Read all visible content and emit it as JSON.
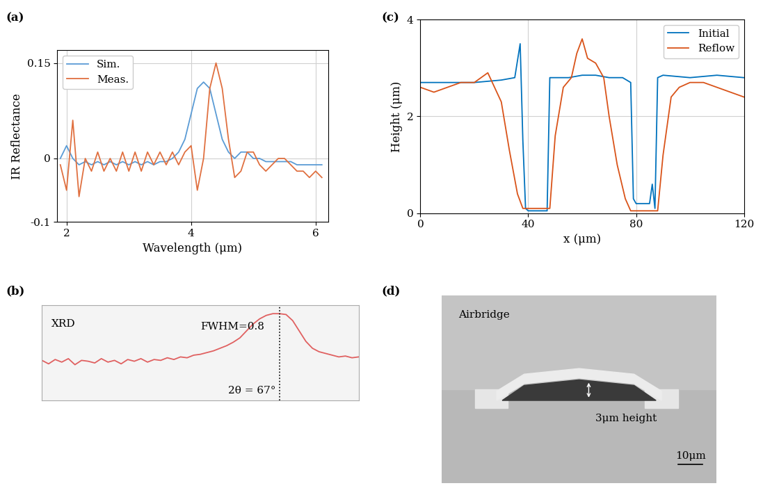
{
  "chart_data": [
    {
      "type": "line",
      "title": "(a)",
      "x_label": "Wavelength (μm)",
      "y_label": "IR Reflectance",
      "xlim": [
        1.85,
        6.2
      ],
      "xticks": [
        2,
        4,
        6
      ],
      "ylim": [
        -0.1,
        0.17
      ],
      "yticks": [
        -0.1,
        0,
        0.15
      ],
      "grid": true,
      "legend": "upper left",
      "series": [
        {
          "name": "Sim.",
          "color": "#5a9bd5",
          "x": [
            1.9,
            2.0,
            2.1,
            2.2,
            2.3,
            2.4,
            2.5,
            2.6,
            2.7,
            2.8,
            2.9,
            3.0,
            3.1,
            3.2,
            3.3,
            3.4,
            3.5,
            3.6,
            3.7,
            3.8,
            3.9,
            4.0,
            4.1,
            4.2,
            4.3,
            4.4,
            4.5,
            4.6,
            4.7,
            4.8,
            4.9,
            5.0,
            5.1,
            5.2,
            5.3,
            5.4,
            5.5,
            5.6,
            5.7,
            5.8,
            5.9,
            6.0,
            6.1
          ],
          "values": [
            0.0,
            0.02,
            0.0,
            -0.01,
            -0.005,
            -0.01,
            -0.005,
            -0.01,
            -0.005,
            -0.01,
            -0.005,
            -0.01,
            -0.005,
            -0.01,
            -0.005,
            -0.01,
            -0.005,
            -0.005,
            0.0,
            0.01,
            0.03,
            0.07,
            0.11,
            0.12,
            0.11,
            0.07,
            0.03,
            0.01,
            0.0,
            0.01,
            0.01,
            0.0,
            0.0,
            -0.005,
            -0.005,
            -0.005,
            -0.005,
            -0.005,
            -0.01,
            -0.01,
            -0.01,
            -0.01,
            -0.01
          ]
        },
        {
          "name": "Meas.",
          "color": "#e07040",
          "x": [
            1.9,
            2.0,
            2.1,
            2.2,
            2.3,
            2.4,
            2.5,
            2.6,
            2.7,
            2.8,
            2.9,
            3.0,
            3.1,
            3.2,
            3.3,
            3.4,
            3.5,
            3.6,
            3.7,
            3.8,
            3.9,
            4.0,
            4.1,
            4.2,
            4.3,
            4.4,
            4.5,
            4.6,
            4.7,
            4.8,
            4.9,
            5.0,
            5.1,
            5.2,
            5.3,
            5.4,
            5.5,
            5.6,
            5.7,
            5.8,
            5.9,
            6.0,
            6.1
          ],
          "values": [
            -0.01,
            -0.05,
            0.06,
            -0.06,
            0.0,
            -0.02,
            0.01,
            -0.02,
            0.0,
            -0.02,
            0.01,
            -0.02,
            0.01,
            -0.02,
            0.01,
            -0.01,
            0.01,
            -0.01,
            0.01,
            -0.01,
            0.01,
            0.02,
            -0.05,
            0.0,
            0.11,
            0.15,
            0.11,
            0.03,
            -0.03,
            -0.02,
            0.01,
            0.01,
            -0.01,
            -0.02,
            -0.01,
            0.0,
            0.0,
            -0.01,
            -0.02,
            -0.02,
            -0.03,
            -0.02,
            -0.03
          ]
        }
      ]
    },
    {
      "type": "line",
      "title": "(b)",
      "tick_labels": false,
      "xlim": [
        58,
        70
      ],
      "ylim": [
        0,
        1.1
      ],
      "annotations": [
        "XRD",
        "FWHM=0.8",
        "2θ = 67°"
      ],
      "peak_x": 67,
      "series": [
        {
          "name": "XRD",
          "color": "#e06060",
          "x": [
            58,
            58.25,
            58.5,
            58.75,
            59,
            59.25,
            59.5,
            59.75,
            60,
            60.25,
            60.5,
            60.75,
            61,
            61.25,
            61.5,
            61.75,
            62,
            62.25,
            62.5,
            62.75,
            63,
            63.25,
            63.5,
            63.75,
            64,
            64.25,
            64.5,
            64.75,
            65,
            65.25,
            65.5,
            65.75,
            66,
            66.25,
            66.5,
            66.75,
            67,
            67.25,
            67.5,
            67.75,
            68,
            68.25,
            68.5,
            68.75,
            69,
            69.25,
            69.5,
            69.75,
            70
          ],
          "values": [
            0.46,
            0.42,
            0.47,
            0.44,
            0.48,
            0.41,
            0.46,
            0.45,
            0.43,
            0.48,
            0.44,
            0.46,
            0.42,
            0.47,
            0.45,
            0.48,
            0.44,
            0.47,
            0.46,
            0.49,
            0.47,
            0.5,
            0.49,
            0.52,
            0.53,
            0.55,
            0.57,
            0.6,
            0.63,
            0.67,
            0.72,
            0.8,
            0.88,
            0.94,
            0.98,
            1.0,
            1.0,
            0.99,
            0.92,
            0.8,
            0.68,
            0.6,
            0.56,
            0.54,
            0.52,
            0.5,
            0.51,
            0.49,
            0.5
          ]
        }
      ]
    },
    {
      "type": "line",
      "title": "(c)",
      "x_label": "x (μm)",
      "y_label": "Height (μm)",
      "xlim": [
        0,
        120
      ],
      "xticks": [
        0,
        40,
        80,
        120
      ],
      "ylim": [
        0,
        4
      ],
      "yticks": [
        0,
        2,
        4
      ],
      "grid": true,
      "legend": "upper right",
      "series": [
        {
          "name": "Initial",
          "color": "#0072bd",
          "x": [
            0,
            10,
            20,
            30,
            35,
            37,
            38,
            39,
            40,
            45,
            47,
            48,
            49,
            55,
            60,
            65,
            70,
            75,
            78,
            79,
            80,
            85,
            86,
            87,
            88,
            90,
            100,
            110,
            120
          ],
          "values": [
            2.7,
            2.7,
            2.7,
            2.75,
            2.8,
            3.5,
            1.5,
            0.1,
            0.05,
            0.05,
            0.05,
            2.8,
            2.8,
            2.8,
            2.85,
            2.85,
            2.8,
            2.8,
            2.7,
            0.3,
            0.2,
            0.2,
            0.6,
            0.1,
            2.8,
            2.85,
            2.8,
            2.85,
            2.8
          ]
        },
        {
          "name": "Reflow",
          "color": "#d95319",
          "x": [
            0,
            5,
            10,
            15,
            20,
            25,
            30,
            33,
            36,
            38,
            40,
            45,
            48,
            50,
            53,
            56,
            58,
            60,
            62,
            65,
            68,
            70,
            73,
            76,
            78,
            80,
            85,
            88,
            90,
            93,
            96,
            100,
            105,
            110,
            115,
            120
          ],
          "values": [
            2.6,
            2.5,
            2.6,
            2.7,
            2.7,
            2.9,
            2.3,
            1.3,
            0.4,
            0.1,
            0.1,
            0.1,
            0.1,
            1.6,
            2.6,
            2.8,
            3.3,
            3.6,
            3.2,
            3.1,
            2.8,
            2.0,
            1.0,
            0.3,
            0.05,
            0.05,
            0.05,
            0.05,
            1.2,
            2.4,
            2.6,
            2.7,
            2.7,
            2.6,
            2.5,
            2.4
          ]
        }
      ]
    },
    {
      "type": "image",
      "title": "(d)",
      "annotations": [
        "Airbridge",
        "3μm height",
        "10μm"
      ]
    }
  ]
}
